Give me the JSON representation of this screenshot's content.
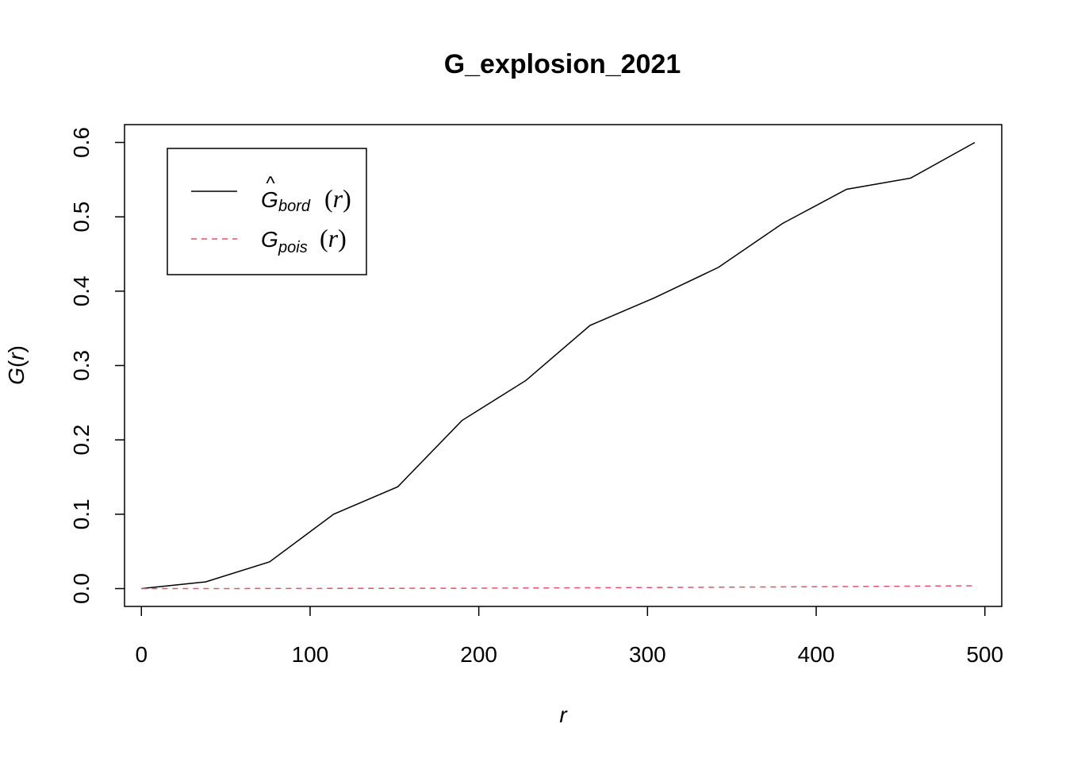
{
  "chart_data": {
    "type": "line",
    "title": "G_explosion_2021",
    "xlabel": "r",
    "ylabel": {
      "main": "G",
      "arg": "r"
    },
    "xlim": [
      -10,
      510
    ],
    "ylim": [
      -0.024,
      0.624
    ],
    "x_ticks": [
      0,
      100,
      200,
      300,
      400,
      500
    ],
    "y_ticks": [
      0.0,
      0.1,
      0.2,
      0.3,
      0.4,
      0.5,
      0.6
    ],
    "x_tick_labels": [
      "0",
      "100",
      "200",
      "300",
      "400",
      "500"
    ],
    "y_tick_labels": [
      "0.0",
      "0.1",
      "0.2",
      "0.3",
      "0.4",
      "0.5",
      "0.6"
    ],
    "legend_position": "top-left",
    "series": [
      {
        "label_main": "G",
        "label_hat": "^",
        "label_sub": "bord",
        "label_arg": "r",
        "color": "#000000",
        "dash": "solid",
        "x": [
          0,
          38,
          76,
          114,
          152,
          190,
          228,
          266,
          304,
          342,
          380,
          418,
          456,
          494
        ],
        "y": [
          0.0,
          0.009,
          0.036,
          0.1,
          0.137,
          0.226,
          0.28,
          0.354,
          0.391,
          0.432,
          0.491,
          0.537,
          0.552,
          0.6
        ]
      },
      {
        "label_main": "G",
        "label_sub": "pois",
        "label_arg": "r",
        "color": "#DF536B",
        "dash": "dashed",
        "x": [
          0,
          38,
          76,
          114,
          152,
          190,
          228,
          266,
          304,
          342,
          380,
          418,
          456,
          494
        ],
        "y": [
          0.0,
          0.0,
          0.0001,
          0.0002,
          0.0003,
          0.0005,
          0.0008,
          0.0011,
          0.0014,
          0.0018,
          0.0023,
          0.0027,
          0.0032,
          0.0038
        ]
      }
    ]
  }
}
